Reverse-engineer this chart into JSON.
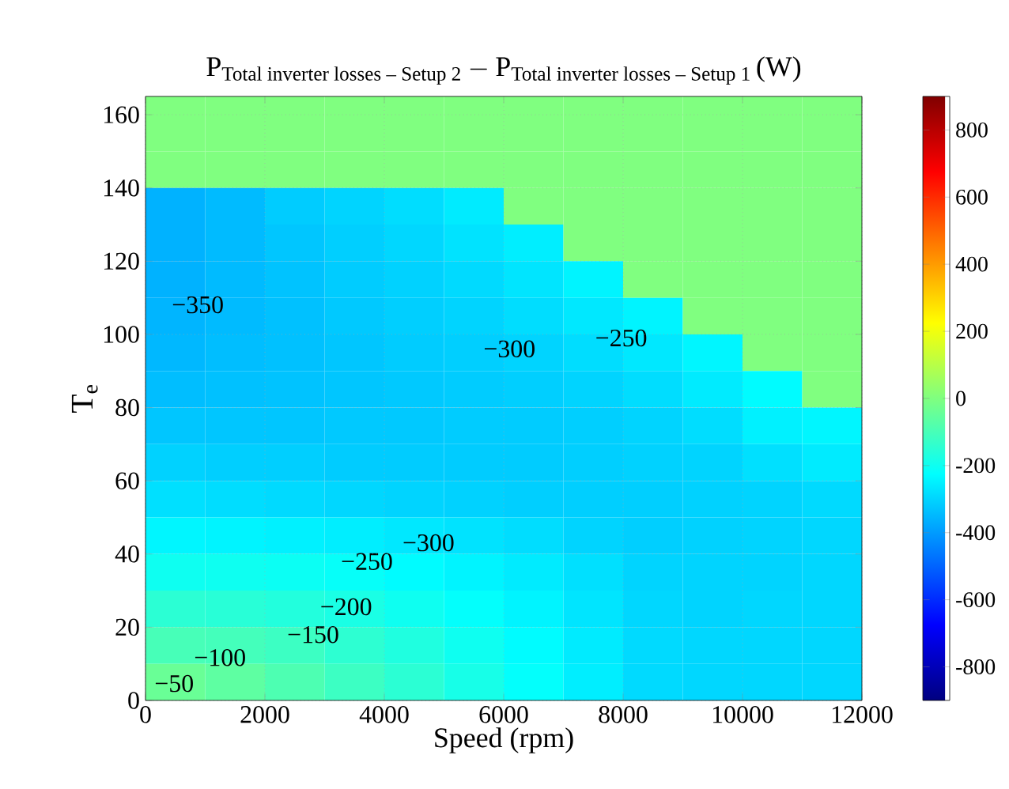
{
  "chart_data": {
    "type": "heatmap",
    "title": "\\mathrm{P}_{\\text{Total inverter losses – Setup 2}} - \\mathrm{P}_{\\text{Total inverter losses – Setup 1}}\\,\\text{(W)}",
    "xlabel": "Speed (rpm)",
    "ylabel": "T$_{e}$",
    "x": [
      500,
      1500,
      2500,
      3500,
      4500,
      5500,
      6500,
      7500,
      8500,
      9500,
      10500,
      11500
    ],
    "y": [
      165,
      155,
      145,
      135,
      125,
      115,
      105,
      95,
      85,
      75,
      65,
      55,
      45,
      35,
      25,
      15,
      5
    ],
    "cells": [
      [
        0,
        0,
        0,
        0,
        0,
        0,
        0,
        0,
        0,
        0,
        0,
        0
      ],
      [
        0,
        0,
        0,
        0,
        0,
        0,
        0,
        0,
        0,
        0,
        0,
        0
      ],
      [
        0,
        0,
        0,
        0,
        0,
        0,
        0,
        0,
        0,
        0,
        0,
        0
      ],
      [
        -360,
        -345,
        -315,
        -300,
        -285,
        -260,
        0,
        0,
        0,
        0,
        0,
        0
      ],
      [
        -360,
        -345,
        -325,
        -310,
        -295,
        -275,
        -255,
        0,
        0,
        0,
        0,
        0
      ],
      [
        -360,
        -345,
        -330,
        -315,
        -305,
        -290,
        -270,
        -245,
        0,
        0,
        0,
        0
      ],
      [
        -355,
        -345,
        -335,
        -320,
        -310,
        -300,
        -285,
        -265,
        -245,
        0,
        0,
        0
      ],
      [
        -350,
        -340,
        -335,
        -325,
        -315,
        -310,
        -300,
        -285,
        -265,
        -240,
        0,
        0
      ],
      [
        -340,
        -335,
        -330,
        -325,
        -320,
        -315,
        -310,
        -300,
        -285,
        -260,
        -230,
        0
      ],
      [
        -325,
        -325,
        -325,
        -320,
        -320,
        -315,
        -315,
        -310,
        -300,
        -285,
        -250,
        -240
      ],
      [
        -305,
        -310,
        -310,
        -315,
        -315,
        -315,
        -315,
        -310,
        -305,
        -300,
        -280,
        -260
      ],
      [
        -280,
        -285,
        -290,
        -295,
        -300,
        -305,
        -310,
        -310,
        -310,
        -305,
        -300,
        -290
      ],
      [
        -240,
        -245,
        -250,
        -255,
        -265,
        -275,
        -285,
        -300,
        -310,
        -305,
        -300,
        -295
      ],
      [
        -200,
        -200,
        -205,
        -215,
        -230,
        -245,
        -260,
        -280,
        -300,
        -300,
        -300,
        -295
      ],
      [
        -150,
        -155,
        -165,
        -180,
        -200,
        -220,
        -245,
        -270,
        -295,
        -300,
        -295,
        -295
      ],
      [
        -100,
        -105,
        -120,
        -145,
        -170,
        -200,
        -230,
        -260,
        -290,
        -295,
        -295,
        -295
      ],
      [
        -40,
        -60,
        -90,
        -120,
        -150,
        -185,
        -220,
        -255,
        -290,
        -295,
        -295,
        -295
      ]
    ],
    "xlim": [
      0,
      12000
    ],
    "ylim": [
      0,
      165
    ],
    "xticks": [
      0,
      2000,
      4000,
      6000,
      8000,
      10000,
      12000
    ],
    "yticks": [
      0,
      20,
      40,
      60,
      80,
      100,
      120,
      140,
      160
    ],
    "clim": [
      -900,
      900
    ],
    "cticks": [
      -800,
      -600,
      -400,
      -200,
      0,
      200,
      400,
      600,
      800
    ],
    "grid": true,
    "annotations": [
      "−350",
      "−300",
      "−250",
      "−300",
      "−250",
      "−200",
      "−150",
      "−100",
      "−50"
    ]
  }
}
